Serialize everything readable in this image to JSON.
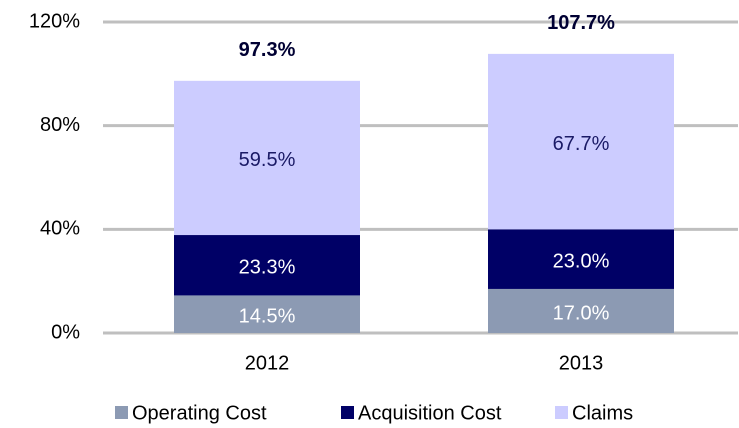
{
  "chart_data": {
    "type": "stacked_bar",
    "categories": [
      "2012",
      "2013"
    ],
    "series": [
      {
        "name": "Operating Cost",
        "color": "#8c9ab3",
        "values": [
          14.5,
          17.0
        ],
        "value_labels": [
          "14.5%",
          "17.0%"
        ]
      },
      {
        "name": "Acquisition Cost",
        "color": "#000066",
        "values": [
          23.3,
          23.0
        ],
        "value_labels": [
          "23.3%",
          "23.0%"
        ]
      },
      {
        "name": "Claims",
        "color": "#ccccff",
        "values": [
          59.5,
          67.7
        ],
        "value_labels": [
          "59.5%",
          "67.7%"
        ]
      }
    ],
    "totals": [
      97.3,
      107.7
    ],
    "total_labels": [
      "97.3%",
      "107.7%"
    ],
    "ylim": [
      0,
      120
    ],
    "yticks": [
      {
        "value": 0,
        "label": "0%"
      },
      {
        "value": 40,
        "label": "40%"
      },
      {
        "value": 80,
        "label": "80%"
      },
      {
        "value": 120,
        "label": "120%"
      }
    ],
    "grid": true,
    "legend": "bottom"
  }
}
